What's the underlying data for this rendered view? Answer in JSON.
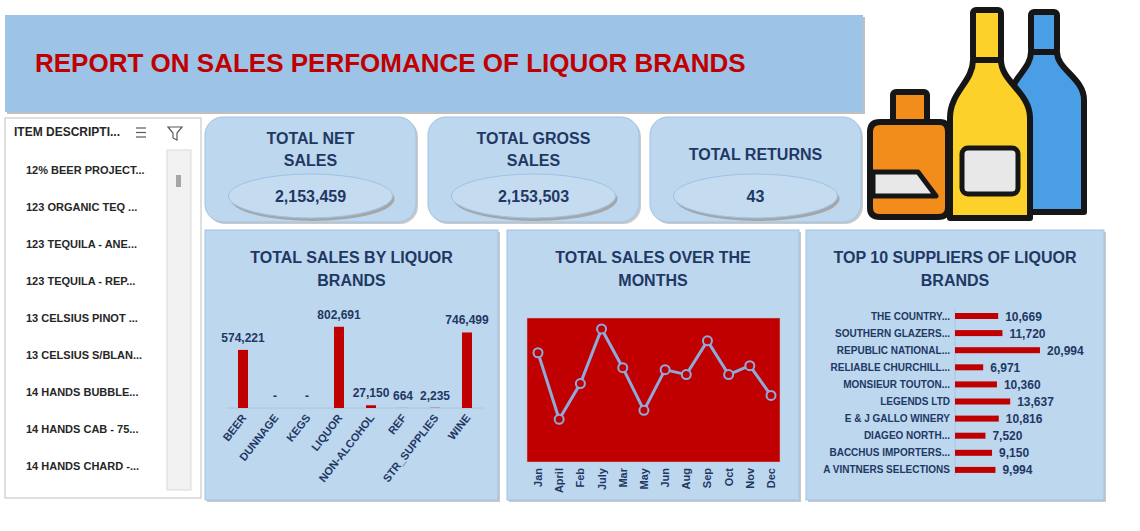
{
  "header": {
    "title": "REPORT ON SALES PERFOMANCE OF LIQUOR BRANDS"
  },
  "slicer": {
    "title": "ITEM DESCRIPTI...",
    "items": [
      "12% BEER PROJECT...",
      "123 ORGANIC TEQ ...",
      "123 TEQUILA - ANE...",
      "123 TEQUILA - REP...",
      "13 CELSIUS PINOT ...",
      "13 CELSIUS S/BLAN...",
      "14 HANDS BUBBLE...",
      "14 HANDS CAB - 75...",
      "14 HANDS CHARD -..."
    ]
  },
  "kpis": [
    {
      "label": "TOTAL NET SALES",
      "value": "2,153,459"
    },
    {
      "label": "TOTAL GROSS SALES",
      "value": "2,153,503"
    },
    {
      "label": "TOTAL RETURNS",
      "value": "43"
    }
  ],
  "chart_data": [
    {
      "type": "bar",
      "title": "TOTAL SALES BY LIQUOR BRANDS",
      "categories": [
        "BEER",
        "DUNNAGE",
        "KEGS",
        "LIQUOR",
        "NON-ALCOHOL",
        "REF",
        "STR_SUPPLIES",
        "WINE"
      ],
      "values": [
        574221,
        0,
        0,
        802691,
        27150,
        664,
        2235,
        746499
      ],
      "value_labels": [
        "574,221",
        "-",
        "-",
        "802,691",
        "27,150",
        "664",
        "2,235",
        "746,499"
      ],
      "color": "#c00000",
      "ylim": [
        0,
        850000
      ],
      "yticks": [],
      "data_labels": true,
      "tick_labels": "x",
      "grid": false
    },
    {
      "type": "line",
      "title": "TOTAL SALES OVER THE MONTHS",
      "categories": [
        "Jan",
        "April",
        "Feb",
        "July",
        "Mar",
        "May",
        "Jun",
        "Aug",
        "Sep",
        "Oct",
        "Nov",
        "Dec"
      ],
      "values": [
        200000,
        133000,
        169000,
        224000,
        185000,
        142000,
        183000,
        178000,
        212000,
        178000,
        187000,
        157000
      ],
      "color": "#8eaadb",
      "marker": "circle",
      "ylim": [
        90000,
        235000
      ],
      "yticks": [],
      "tick_labels": "x",
      "grid": false
    },
    {
      "type": "bar",
      "orientation": "horizontal",
      "title": "TOP 10 SUPPLIERS OF LIQUOR BRANDS",
      "categories": [
        "THE COUNTRY...",
        "SOUTHERN GLAZERS...",
        "REPUBLIC NATIONAL...",
        "RELIABLE CHURCHILL...",
        "MONSIEUR TOUTON...",
        "LEGENDS LTD",
        "E & J GALLO WINERY",
        "DIAGEO NORTH...",
        "BACCHUS IMPORTERS...",
        "A VINTNERS SELECTIONS"
      ],
      "values": [
        10669,
        11720,
        20994,
        6971,
        10360,
        13637,
        10816,
        7520,
        9150,
        9994
      ],
      "value_labels": [
        "10,669",
        "11,720",
        "20,994",
        "6,971",
        "10,360",
        "13,637",
        "10,816",
        "7,520",
        "9,150",
        "9,994"
      ],
      "color": "#c00000",
      "xlim": [
        0,
        21000
      ],
      "xticks": [],
      "data_labels": true,
      "tick_labels": "y",
      "grid": false
    }
  ]
}
